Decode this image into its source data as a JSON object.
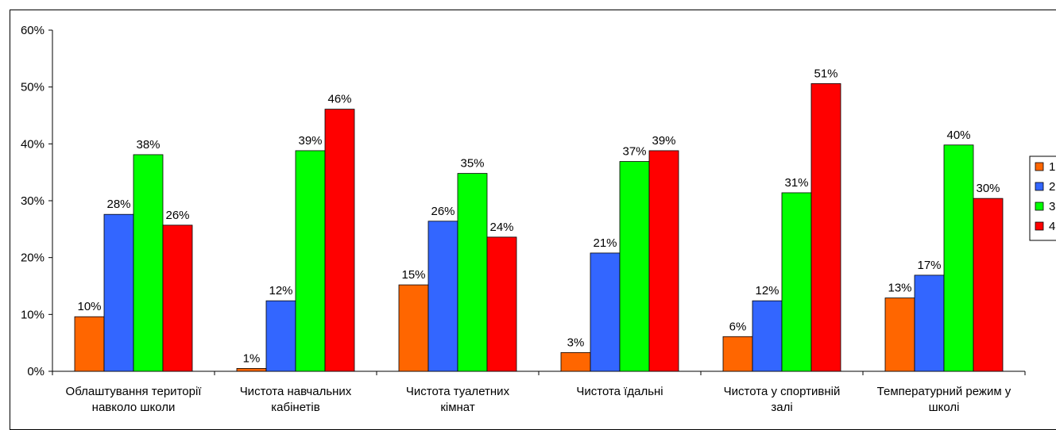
{
  "chart_data": {
    "type": "bar",
    "categories": [
      [
        "Облаштування території",
        "навколо школи"
      ],
      [
        "Чистота навчальних",
        "кабінетів"
      ],
      [
        "Чистота туалетних",
        "кімнат"
      ],
      [
        "Чистота їдальні"
      ],
      [
        "Чистота у спортивній",
        "залі"
      ],
      [
        "Температурний режим у",
        "школі"
      ]
    ],
    "series": [
      {
        "name": "1",
        "color": "#FF6600",
        "values": [
          9.6,
          0.5,
          15.2,
          3.3,
          6.1,
          12.9
        ],
        "labels": [
          "10%",
          "1%",
          "15%",
          "3%",
          "6%",
          "13%"
        ]
      },
      {
        "name": "2",
        "color": "#3366FF",
        "values": [
          27.6,
          12.4,
          26.4,
          20.8,
          12.4,
          16.9
        ],
        "labels": [
          "28%",
          "12%",
          "26%",
          "21%",
          "12%",
          "17%"
        ]
      },
      {
        "name": "3",
        "color": "#00FF00",
        "values": [
          38.1,
          38.8,
          34.8,
          36.9,
          31.4,
          39.8
        ],
        "labels": [
          "38%",
          "39%",
          "35%",
          "37%",
          "31%",
          "40%"
        ]
      },
      {
        "name": "4",
        "color": "#FF0000",
        "values": [
          25.7,
          46.1,
          23.6,
          38.8,
          50.6,
          30.4
        ],
        "labels": [
          "26%",
          "46%",
          "24%",
          "39%",
          "51%",
          "30%"
        ]
      }
    ],
    "ylim": [
      0,
      60
    ],
    "yticks": [
      "0%",
      "10%",
      "20%",
      "30%",
      "40%",
      "50%",
      "60%"
    ],
    "grid": false,
    "legend_position": "right"
  }
}
